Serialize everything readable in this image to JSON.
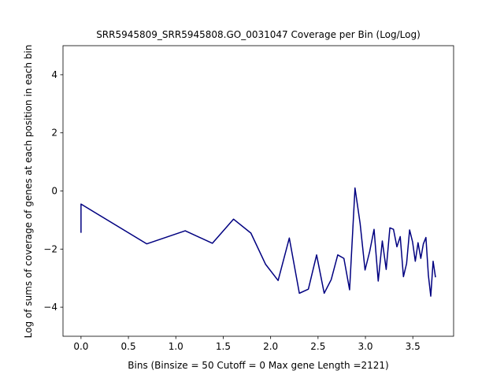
{
  "chart_data": {
    "type": "line",
    "title": "SRR5945809_SRR5945808.GO_0031047 Coverage per Bin (Log/Log)",
    "xlabel": "Bins  (Binsize = 50 Cutoff = 0 Max gene Length =2121)",
    "ylabel": "Log of sums of coverage of genes at each position in each bin",
    "xlim": [
      -0.19,
      3.93
    ],
    "ylim": [
      -5,
      5
    ],
    "x_ticks": [
      0.0,
      0.5,
      1.0,
      1.5,
      2.0,
      2.5,
      3.0,
      3.5
    ],
    "x_tick_labels": [
      "0.0",
      "0.5",
      "1.0",
      "1.5",
      "2.0",
      "2.5",
      "3.0",
      "3.5"
    ],
    "y_ticks": [
      -4,
      -2,
      0,
      2,
      4
    ],
    "y_tick_labels": [
      "−4",
      "−2",
      "0",
      "2",
      "4"
    ],
    "grid": false,
    "series": [
      {
        "color": "#000080",
        "x": [
          0.0,
          0.0,
          0.693,
          1.099,
          1.386,
          1.609,
          1.792,
          1.946,
          2.079,
          2.197,
          2.303,
          2.398,
          2.485,
          2.565,
          2.639,
          2.708,
          2.773,
          2.833,
          2.89,
          2.944,
          2.996,
          3.045,
          3.091,
          3.135,
          3.178,
          3.219,
          3.258,
          3.296,
          3.332,
          3.367,
          3.401,
          3.434,
          3.466,
          3.497,
          3.526,
          3.555,
          3.584,
          3.611,
          3.638,
          3.664,
          3.689,
          3.714,
          3.738
        ],
        "y": [
          -1.42,
          -0.45,
          -1.82,
          -1.37,
          -1.8,
          -0.97,
          -1.45,
          -2.52,
          -3.08,
          -1.62,
          -3.52,
          -3.38,
          -2.2,
          -3.52,
          -3.05,
          -2.2,
          -2.32,
          -3.4,
          0.1,
          -1.12,
          -2.72,
          -2.08,
          -1.32,
          -3.1,
          -1.72,
          -2.7,
          -1.27,
          -1.32,
          -1.92,
          -1.57,
          -2.95,
          -2.5,
          -1.34,
          -1.75,
          -2.42,
          -1.78,
          -2.32,
          -1.82,
          -1.6,
          -2.9,
          -3.62,
          -2.42,
          -2.95
        ]
      }
    ]
  }
}
